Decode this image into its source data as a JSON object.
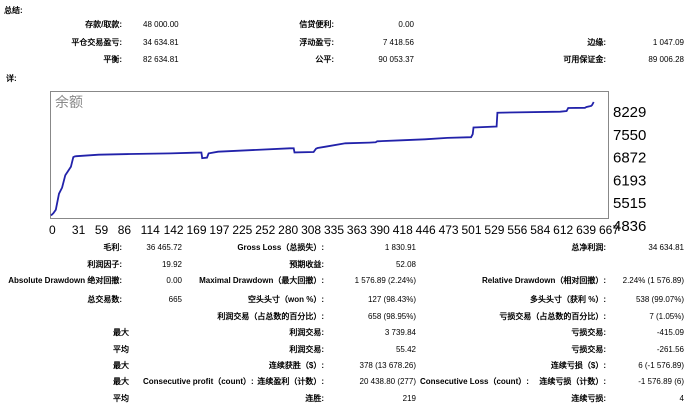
{
  "summary": {
    "title": "总结:",
    "rows": [
      [
        {
          "label": "存款/取款:",
          "value": "48 000.00"
        },
        {
          "label": "信贷便利:",
          "value": "0.00"
        },
        {
          "label": "",
          "value": ""
        }
      ],
      [
        {
          "label": "平仓交易盈亏:",
          "value": "34 634.81"
        },
        {
          "label": "浮动盈亏:",
          "value": "7 418.56"
        },
        {
          "label": "边缘:",
          "value": "1 047.09"
        }
      ],
      [
        {
          "label": "平衡:",
          "value": "82 634.81"
        },
        {
          "label": "公平:",
          "value": "90 053.37"
        },
        {
          "label": "可用保证金:",
          "value": "89 006.28"
        }
      ]
    ]
  },
  "detail": {
    "title": "详:"
  },
  "chart_data": {
    "type": "line",
    "title": "余额",
    "y_ticks": [
      "8229",
      "7550",
      "6872",
      "6193",
      "5515",
      "4836"
    ],
    "y_range": [
      4836,
      8229
    ],
    "x_ticks": [
      "0",
      "31",
      "59",
      "86",
      "114",
      "142",
      "169",
      "197",
      "225",
      "252",
      "280",
      "308",
      "335",
      "363",
      "390",
      "418",
      "446",
      "473",
      "501",
      "529",
      "556",
      "584",
      "612",
      "639",
      "667"
    ],
    "x_range": [
      0,
      700
    ],
    "series": [
      {
        "color": "#2222aa",
        "x": [
          0,
          3,
          6,
          10,
          14,
          18,
          25,
          28,
          30,
          32,
          60,
          100,
          150,
          180,
          189,
          190,
          196,
          198,
          210,
          300,
          305,
          306,
          330,
          333,
          335,
          345,
          370,
          400,
          408,
          410,
          440,
          470,
          498,
          528,
          530,
          531,
          560,
          561,
          640,
          648,
          650,
          671,
          673,
          677,
          679,
          680,
          682
        ],
        "y": [
          4850,
          4920,
          5020,
          5500,
          5680,
          6050,
          6300,
          6590,
          6610,
          6615,
          6660,
          6680,
          6700,
          6720,
          6725,
          6560,
          6570,
          6700,
          6750,
          6850,
          6850,
          6730,
          6740,
          6840,
          6860,
          6900,
          7000,
          7020,
          7030,
          7060,
          7090,
          7120,
          7160,
          7180,
          7270,
          7470,
          7500,
          7910,
          7940,
          7960,
          8050,
          8055,
          8080,
          8100,
          8115,
          8140,
          8229
        ]
      }
    ]
  },
  "stats": {
    "r1": {
      "c1l": "毛利:",
      "c1v": "36 465.72",
      "c2l": "Gross Loss（总损失）:",
      "c2v": "1 830.91",
      "c3l": "总净利润:",
      "c3v": "34 634.81"
    },
    "r2": {
      "c1l": "利润因子:",
      "c1v": "19.92",
      "c2l": "预期收益:",
      "c2v": "52.08"
    },
    "r3": {
      "c1l": "Absolute Drawdown 绝对回撤:",
      "c1v": "0.00",
      "c2l": "Maximal Drawdown（最大回撤）:",
      "c2v": "1 576.89 (2.24%)",
      "c3l": "Relative Drawdown（相对回撤）:",
      "c3v": "2.24% (1 576.89)"
    },
    "r4": {
      "c1l": "总交易数:",
      "c1v": "665",
      "c2l": "空头头寸（won %）:",
      "c2v": "127 (98.43%)",
      "c3l": "多头头寸（获利 %）:",
      "c3v": "538 (99.07%)"
    },
    "r5": {
      "c2l": "利润交易（占总数的百分比）:",
      "c2v": "658 (98.95%)",
      "c3l": "亏损交易（占总数的百分比）:",
      "c3v": "7 (1.05%)"
    },
    "r6": {
      "c1l": "最大",
      "c2l": "利润交易:",
      "c2v": "3 739.84",
      "c3l": "亏损交易:",
      "c3v": "-415.09"
    },
    "r7": {
      "c1l": "平均",
      "c2l": "利润交易:",
      "c2v": "55.42",
      "c3l": "亏损交易:",
      "c3v": "-261.56"
    },
    "r8": {
      "c1l": "最大",
      "c2l": "连续获胜（$）:",
      "c2v": "378 (13 678.26)",
      "c3l": "连续亏损（$）:",
      "c3v": "6 (-1 576.89)"
    },
    "r9": {
      "c1l": "最大",
      "c1b": "Consecutive profit（count）:",
      "c2l": "连续盈利（计数）:",
      "c2v": "20 438.80 (277)",
      "c2b": "Consecutive Loss（count）:",
      "c3l": "连续亏损（计数）:",
      "c3v": "-1 576.89 (6)"
    },
    "r10": {
      "c1l": "平均",
      "c2l": "连胜:",
      "c2v": "219",
      "c3l": "连续亏损:",
      "c3v": "4"
    }
  }
}
